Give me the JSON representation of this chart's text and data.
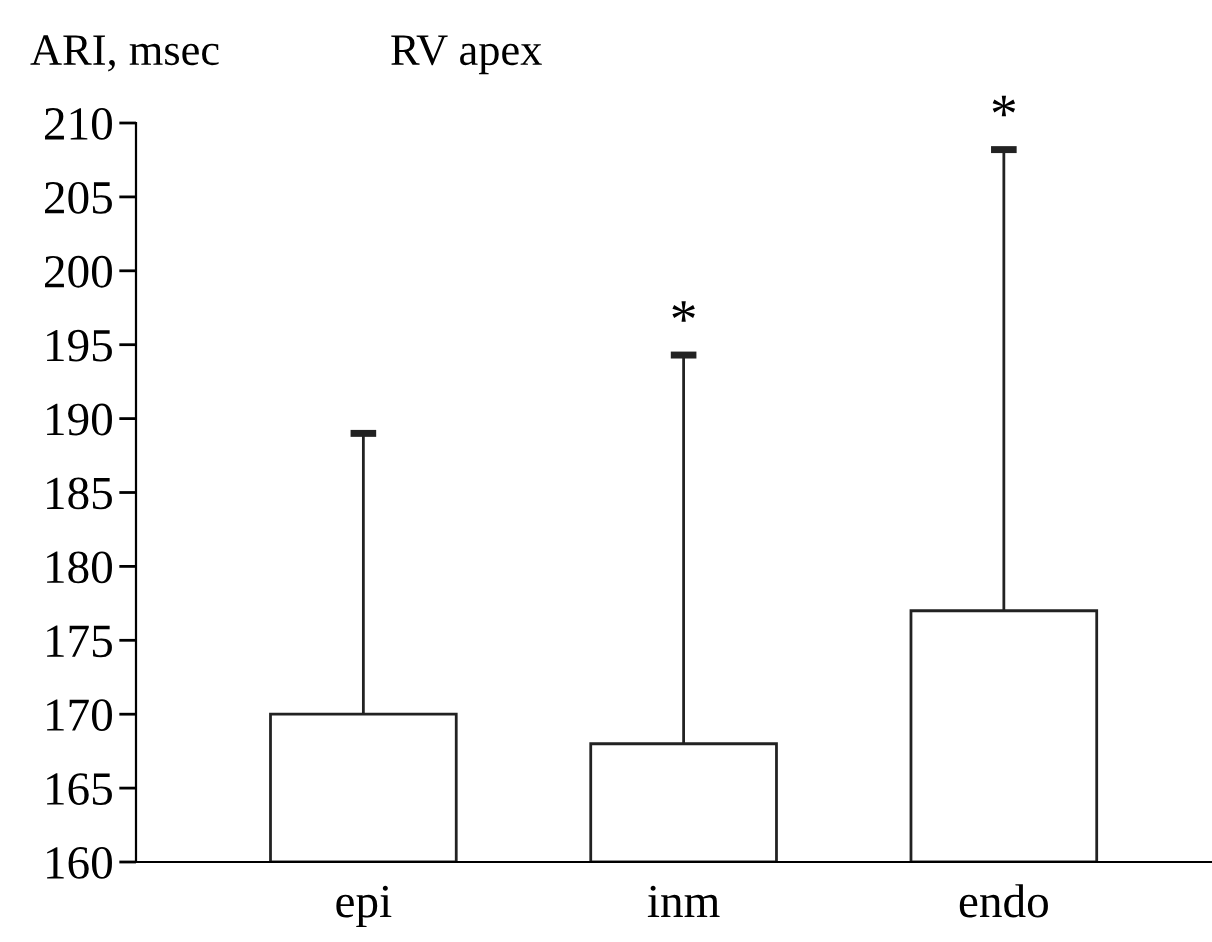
{
  "chart_data": {
    "type": "bar",
    "title": "RV apex",
    "ylabel": "ARI, msec",
    "categories": [
      "epi",
      "inm",
      "endo"
    ],
    "values": [
      170,
      168,
      177
    ],
    "errors": [
      [
        170,
        189
      ],
      [
        168,
        194.3
      ],
      [
        177,
        208.2
      ]
    ],
    "color": "#ffffff",
    "ylim": [
      160,
      210
    ],
    "yticks": [
      160,
      165,
      170,
      175,
      180,
      185,
      190,
      195,
      200,
      205,
      210
    ],
    "annotations": [
      {
        "text": "*",
        "x": "inm",
        "y": 194.3
      },
      {
        "text": "*",
        "x": "endo",
        "y": 208.2
      }
    ],
    "grid": false,
    "legend": false
  }
}
